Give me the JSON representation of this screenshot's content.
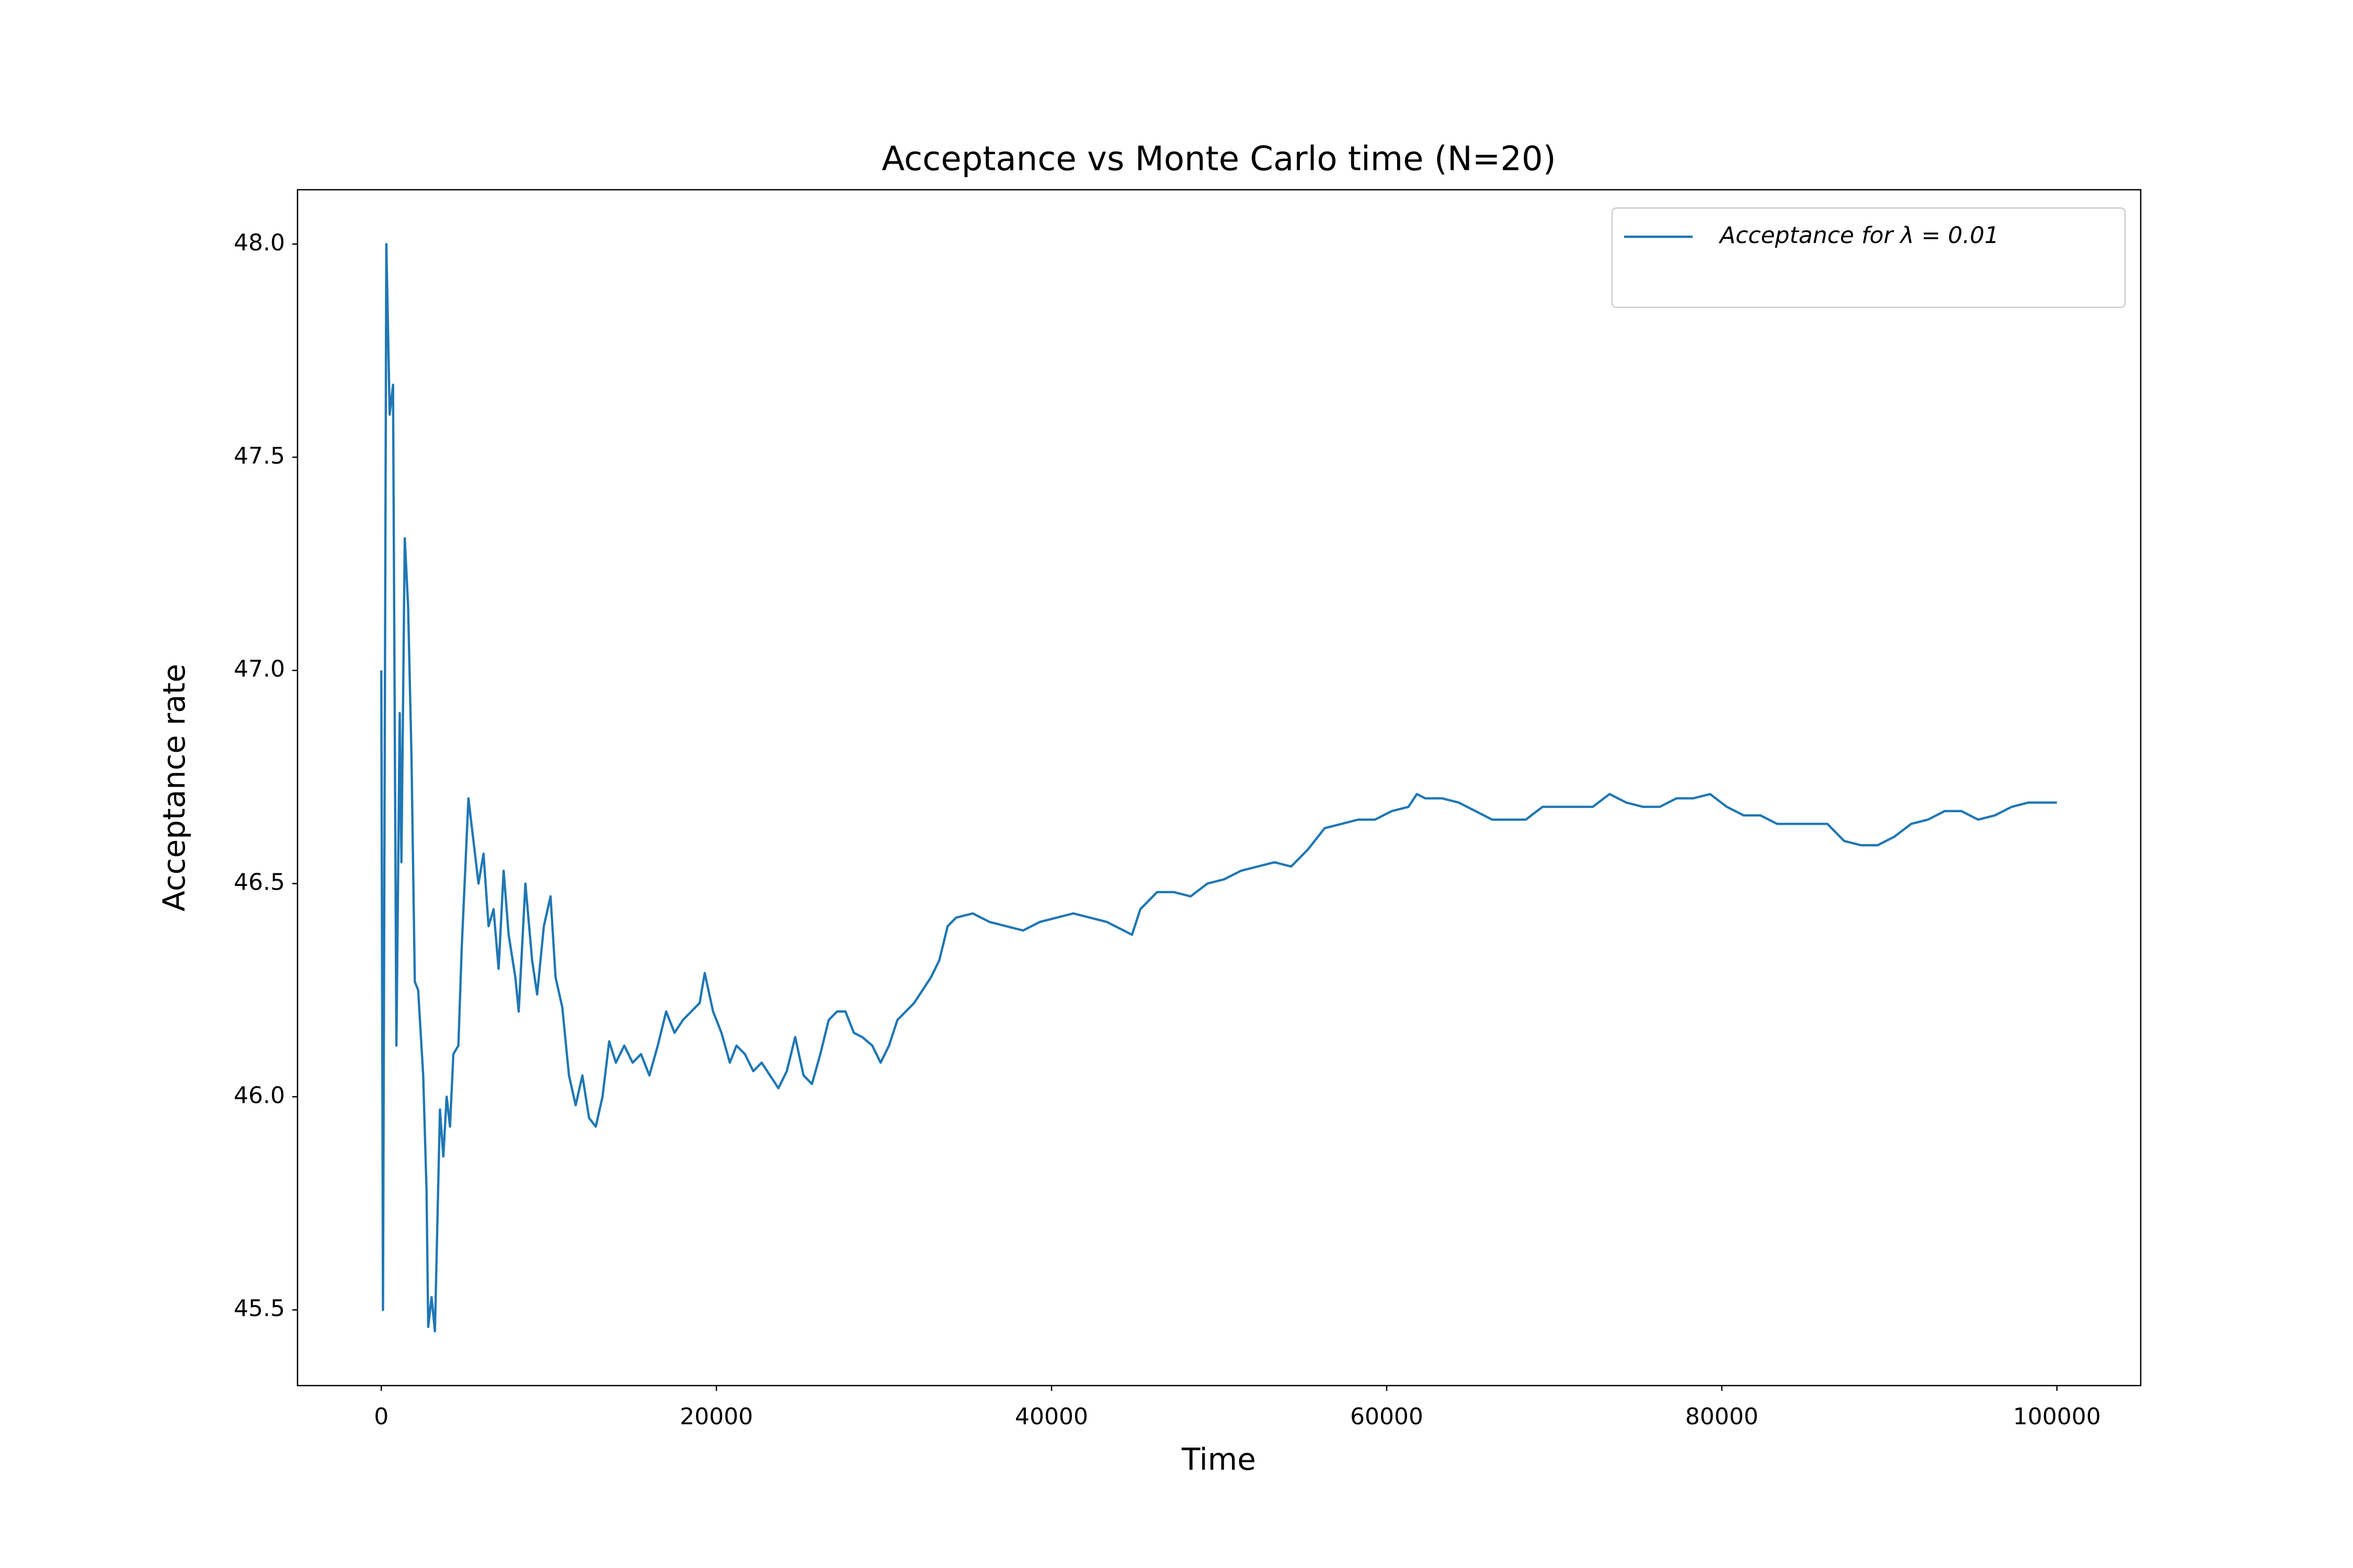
{
  "chart_data": {
    "type": "line",
    "title": "Acceptance vs Monte Carlo time (N=20)",
    "xlabel": "Time",
    "ylabel": "Acceptance rate",
    "x": [
      0,
      100,
      300,
      500,
      700,
      900,
      1100,
      1200,
      1400,
      1600,
      1800,
      2000,
      2200,
      2500,
      2700,
      2800,
      3000,
      3200,
      3500,
      3700,
      3900,
      4100,
      4300,
      4600,
      4800,
      5200,
      5500,
      5800,
      6100,
      6400,
      6700,
      7000,
      7300,
      7600,
      8000,
      8200,
      8600,
      9000,
      9300,
      9700,
      10100,
      10400,
      10800,
      11200,
      11600,
      12000,
      12400,
      12800,
      13200,
      13600,
      14000,
      14500,
      15000,
      15500,
      16000,
      16500,
      17000,
      17500,
      18000,
      18500,
      19000,
      19300,
      19800,
      20300,
      20800,
      21200,
      21700,
      22200,
      22700,
      23200,
      23700,
      24200,
      24700,
      25200,
      25700,
      26200,
      26700,
      27200,
      27700,
      28200,
      28700,
      29300,
      29800,
      30300,
      30800,
      31300,
      31800,
      32300,
      32800,
      33300,
      33800,
      34300,
      35300,
      36300,
      37300,
      38300,
      39300,
      40300,
      41300,
      42300,
      43300,
      44300,
      44800,
      45300,
      46300,
      47300,
      48300,
      49300,
      50300,
      51300,
      52300,
      53300,
      54300,
      55300,
      56300,
      57300,
      58300,
      59300,
      60300,
      61300,
      61800,
      62300,
      63300,
      64300,
      65300,
      66300,
      67300,
      68300,
      69300,
      70300,
      71300,
      72300,
      73300,
      74300,
      75300,
      76300,
      77300,
      78300,
      79300,
      80300,
      81300,
      82300,
      83300,
      84300,
      85300,
      86300,
      87300,
      88300,
      89300,
      90300,
      91300,
      92300,
      93300,
      94300,
      95300,
      96300,
      97300,
      98300,
      99300,
      100000
    ],
    "series": [
      {
        "name": "Acceptance for λ = 0.01",
        "color": "#1f77b4",
        "values": [
          47.0,
          45.5,
          48.0,
          47.6,
          47.67,
          46.12,
          46.9,
          46.55,
          47.31,
          47.15,
          46.8,
          46.27,
          46.25,
          46.05,
          45.78,
          45.46,
          45.53,
          45.45,
          45.97,
          45.86,
          46.0,
          45.93,
          46.1,
          46.12,
          46.35,
          46.7,
          46.6,
          46.5,
          46.57,
          46.4,
          46.44,
          46.3,
          46.53,
          46.38,
          46.28,
          46.2,
          46.5,
          46.32,
          46.24,
          46.4,
          46.47,
          46.28,
          46.21,
          46.05,
          45.98,
          46.05,
          45.95,
          45.93,
          46.0,
          46.13,
          46.08,
          46.12,
          46.08,
          46.1,
          46.05,
          46.12,
          46.2,
          46.15,
          46.18,
          46.2,
          46.22,
          46.29,
          46.2,
          46.15,
          46.08,
          46.12,
          46.1,
          46.06,
          46.08,
          46.05,
          46.02,
          46.06,
          46.14,
          46.05,
          46.03,
          46.1,
          46.18,
          46.2,
          46.2,
          46.15,
          46.14,
          46.12,
          46.08,
          46.12,
          46.18,
          46.2,
          46.22,
          46.25,
          46.28,
          46.32,
          46.4,
          46.42,
          46.43,
          46.41,
          46.4,
          46.39,
          46.41,
          46.42,
          46.43,
          46.42,
          46.41,
          46.39,
          46.38,
          46.44,
          46.48,
          46.48,
          46.47,
          46.5,
          46.51,
          46.53,
          46.54,
          46.55,
          46.54,
          46.58,
          46.63,
          46.64,
          46.65,
          46.65,
          46.67,
          46.68,
          46.71,
          46.7,
          46.7,
          46.69,
          46.67,
          46.65,
          46.65,
          46.65,
          46.68,
          46.68,
          46.68,
          46.68,
          46.71,
          46.69,
          46.68,
          46.68,
          46.7,
          46.7,
          46.71,
          46.68,
          46.66,
          46.66,
          46.64,
          46.64,
          46.64,
          46.64,
          46.6,
          46.59,
          46.59,
          46.61,
          46.64,
          46.65,
          46.67,
          46.67,
          46.65,
          46.66,
          46.68,
          46.69,
          46.69,
          46.69
        ]
      }
    ],
    "xlim": [
      -5000,
      105000
    ],
    "ylim": [
      45.3225,
      48.1275
    ],
    "xticks": [
      0,
      20000,
      40000,
      60000,
      80000,
      100000
    ],
    "yticks": [
      45.5,
      {
        "value": 46,
        "label": "46.0"
      },
      46.5,
      {
        "value": 47,
        "label": "47.0"
      },
      47.5,
      {
        "value": 48,
        "label": "48.0"
      }
    ],
    "grid": false,
    "legend": "upper right"
  }
}
